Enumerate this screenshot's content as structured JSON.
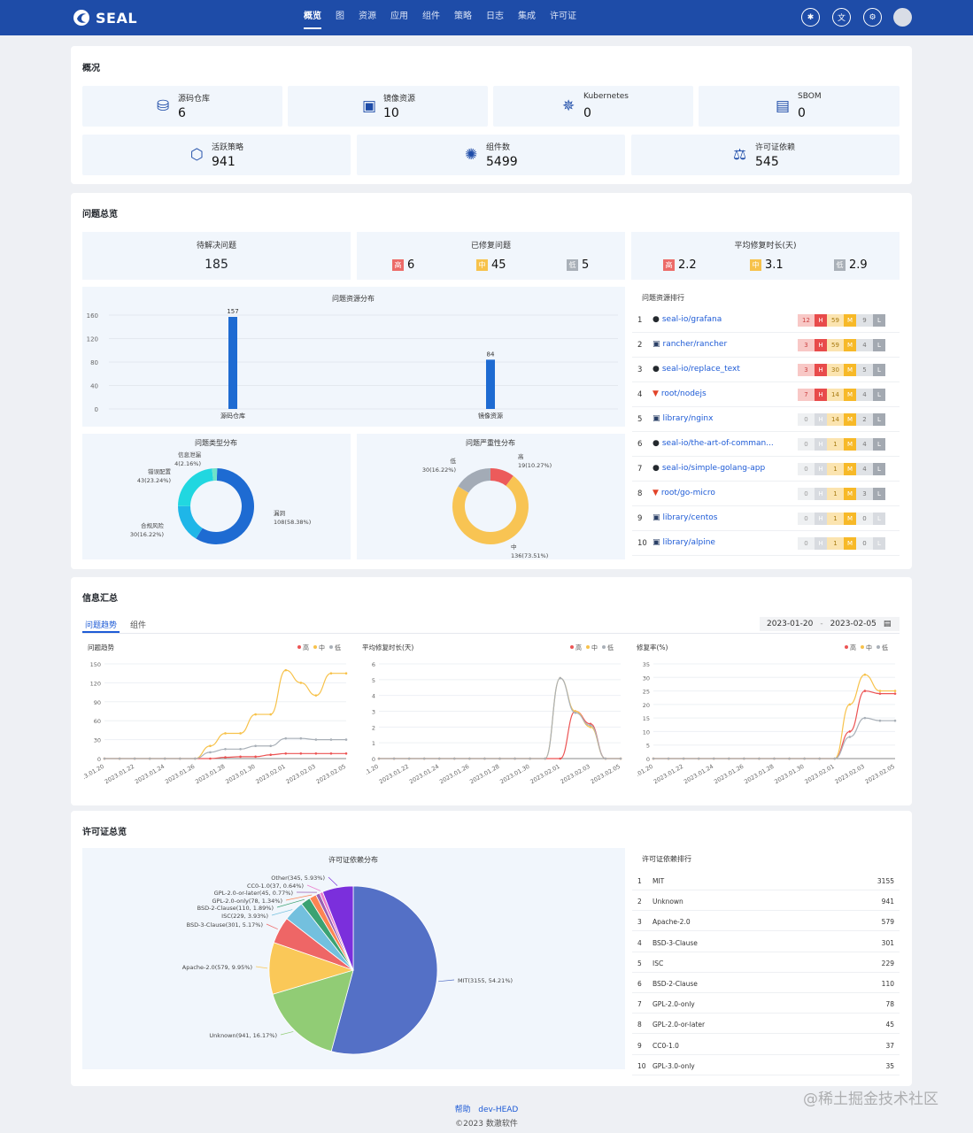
{
  "header": {
    "brand": "SEAL",
    "nav": [
      "概览",
      "图",
      "资源",
      "应用",
      "组件",
      "策略",
      "日志",
      "集成",
      "许可证"
    ],
    "active_nav": "概览",
    "icons": [
      "bug-icon",
      "translate-icon",
      "settings-icon"
    ]
  },
  "overview": {
    "title": "概况",
    "tiles": [
      {
        "label": "源码仓库",
        "value": "6",
        "icon": "database-icon"
      },
      {
        "label": "镜像资源",
        "value": "10",
        "icon": "image-icon"
      },
      {
        "label": "Kubernetes",
        "value": "0",
        "icon": "kubernetes-icon"
      },
      {
        "label": "SBOM",
        "value": "0",
        "icon": "sbom-icon"
      },
      {
        "label": "活跃策略",
        "value": "941",
        "icon": "policy-icon"
      },
      {
        "label": "组件数",
        "value": "5499",
        "icon": "component-icon"
      },
      {
        "label": "许可证依赖",
        "value": "545",
        "icon": "scale-icon"
      }
    ]
  },
  "issues": {
    "title": "问题总览",
    "pending": {
      "label": "待解决问题",
      "value": "185"
    },
    "fixed": {
      "label": "已修复问题",
      "high_badge": "高",
      "high": "6",
      "mid_badge": "中",
      "mid": "45",
      "low_badge": "低",
      "low": "5"
    },
    "avg": {
      "label": "平均修复时长(天)",
      "high_badge": "高",
      "high": "2.2",
      "mid_badge": "中",
      "mid": "3.1",
      "low_badge": "低",
      "low": "2.9"
    },
    "ranking_title": "问题资源排行",
    "ranking": [
      {
        "rank": "1",
        "repo": "seal-io/grafana",
        "kind": "github",
        "h": "12",
        "hl": "H",
        "m": "59",
        "ml": "M",
        "l": "9",
        "ll": "L"
      },
      {
        "rank": "2",
        "repo": "rancher/rancher",
        "kind": "image",
        "h": "3",
        "hl": "H",
        "m": "59",
        "ml": "M",
        "l": "4",
        "ll": "L"
      },
      {
        "rank": "3",
        "repo": "seal-io/replace_text",
        "kind": "github",
        "h": "3",
        "hl": "H",
        "m": "30",
        "ml": "M",
        "l": "5",
        "ll": "L"
      },
      {
        "rank": "4",
        "repo": "root/nodejs",
        "kind": "gitlab",
        "h": "7",
        "hl": "H",
        "m": "14",
        "ml": "M",
        "l": "4",
        "ll": "L"
      },
      {
        "rank": "5",
        "repo": "library/nginx",
        "kind": "image",
        "h": "0",
        "hl": "H",
        "m": "14",
        "ml": "M",
        "l": "2",
        "ll": "L"
      },
      {
        "rank": "6",
        "repo": "seal-io/the-art-of-comman...",
        "kind": "github",
        "h": "0",
        "hl": "H",
        "m": "1",
        "ml": "M",
        "l": "4",
        "ll": "L"
      },
      {
        "rank": "7",
        "repo": "seal-io/simple-golang-app",
        "kind": "github",
        "h": "0",
        "hl": "H",
        "m": "1",
        "ml": "M",
        "l": "4",
        "ll": "L"
      },
      {
        "rank": "8",
        "repo": "root/go-micro",
        "kind": "gitlab",
        "h": "0",
        "hl": "H",
        "m": "1",
        "ml": "M",
        "l": "3",
        "ll": "L"
      },
      {
        "rank": "9",
        "repo": "library/centos",
        "kind": "image",
        "h": "0",
        "hl": "H",
        "m": "1",
        "ml": "M",
        "l": "0",
        "ll": "L"
      },
      {
        "rank": "10",
        "repo": "library/alpine",
        "kind": "image",
        "h": "0",
        "hl": "H",
        "m": "1",
        "ml": "M",
        "l": "0",
        "ll": "L"
      }
    ]
  },
  "info": {
    "title": "信息汇总",
    "tabs": [
      "问题趋势",
      "组件"
    ],
    "date_start": "2023-01-20",
    "date_sep": "-",
    "date_end": "2023-02-05"
  },
  "license": {
    "title": "许可证总览",
    "ranking_title": "许可证依赖排行",
    "ranking": [
      {
        "rank": "1",
        "name": "MIT",
        "count": "3155"
      },
      {
        "rank": "2",
        "name": "Unknown",
        "count": "941"
      },
      {
        "rank": "3",
        "name": "Apache-2.0",
        "count": "579"
      },
      {
        "rank": "4",
        "name": "BSD-3-Clause",
        "count": "301"
      },
      {
        "rank": "5",
        "name": "ISC",
        "count": "229"
      },
      {
        "rank": "6",
        "name": "BSD-2-Clause",
        "count": "110"
      },
      {
        "rank": "7",
        "name": "GPL-2.0-only",
        "count": "78"
      },
      {
        "rank": "8",
        "name": "GPL-2.0-or-later",
        "count": "45"
      },
      {
        "rank": "9",
        "name": "CC0-1.0",
        "count": "37"
      },
      {
        "rank": "10",
        "name": "GPL-3.0-only",
        "count": "35"
      }
    ]
  },
  "footer": {
    "help": "帮助",
    "version": "dev-HEAD",
    "copyright": "©2023 数澈软件"
  },
  "watermark": "@稀土掘金技术社区",
  "colors": {
    "primary": "#1e4ca8",
    "high": "#ec5454",
    "mid": "#f7c24b",
    "low": "#a9b0b8",
    "blue": "#1e6bd2"
  },
  "chart_data": [
    {
      "type": "bar",
      "title": "问题资源分布",
      "categories": [
        "源码仓库",
        "镜像资源"
      ],
      "values": [
        157,
        84
      ],
      "ylim": [
        0,
        160
      ],
      "yticks": [
        0,
        40,
        80,
        120,
        160
      ]
    },
    {
      "type": "pie",
      "title": "问题类型分布",
      "donut": true,
      "slices": [
        {
          "label": "漏洞",
          "value": 108,
          "pct": "58.38%",
          "text": "108(58.38%)",
          "color": "#1e6bd2"
        },
        {
          "label": "合规风险",
          "value": 30,
          "pct": "16.22%",
          "text": "30(16.22%)",
          "color": "#1fb6e8"
        },
        {
          "label": "错误配置",
          "value": 43,
          "pct": "23.24%",
          "text": "43(23.24%)",
          "color": "#21d7e0"
        },
        {
          "label": "信息泄漏",
          "value": 4,
          "pct": "2.16%",
          "text": "4(2.16%)",
          "color": "#6fe3c9"
        }
      ]
    },
    {
      "type": "pie",
      "title": "问题严重性分布",
      "donut": true,
      "slices": [
        {
          "label": "高",
          "value": 19,
          "pct": "10.27%",
          "text": "19(10.27%)",
          "color": "#ec5b5b"
        },
        {
          "label": "中",
          "value": 136,
          "pct": "73.51%",
          "text": "136(73.51%)",
          "color": "#f8c453"
        },
        {
          "label": "低",
          "value": 30,
          "pct": "16.22%",
          "text": "30(16.22%)",
          "color": "#a3abb6"
        }
      ]
    },
    {
      "type": "line",
      "title": "问题趋势",
      "legend": [
        "高",
        "中",
        "低"
      ],
      "x": [
        "2023.01.20",
        "2023.01.21",
        "2023.01.22",
        "2023.01.23",
        "2023.01.24",
        "2023.01.25",
        "2023.01.26",
        "2023.01.27",
        "2023.01.28",
        "2023.01.29",
        "2023.01.30",
        "2023.01.31",
        "2023.02.01",
        "2023.02.02",
        "2023.02.03",
        "2023.02.04",
        "2023.02.05"
      ],
      "xticks": [
        ".3.01.20",
        "2023.01.22",
        "2023.01.24",
        "2023.01.26",
        "2023.01.28",
        "2023.01.30",
        "2023.02.01",
        "2023.02.03",
        "2023.02.05"
      ],
      "ylim": [
        0,
        150
      ],
      "yticks": [
        0,
        30,
        60,
        90,
        120,
        150
      ],
      "series": [
        {
          "name": "高",
          "values": [
            0,
            0,
            0,
            0,
            0,
            0,
            0,
            0,
            2,
            3,
            3,
            6,
            8,
            8,
            8,
            8,
            8
          ]
        },
        {
          "name": "中",
          "values": [
            0,
            0,
            0,
            0,
            0,
            0,
            0,
            20,
            40,
            40,
            70,
            70,
            140,
            120,
            100,
            135,
            135
          ]
        },
        {
          "name": "低",
          "values": [
            0,
            0,
            0,
            0,
            0,
            0,
            0,
            10,
            15,
            15,
            20,
            20,
            32,
            32,
            30,
            30,
            30
          ]
        }
      ]
    },
    {
      "type": "line",
      "title": "平均修复时长(天)",
      "legend": [
        "高",
        "中",
        "低"
      ],
      "x": [
        "2023.01.20",
        "2023.01.21",
        "2023.01.22",
        "2023.01.23",
        "2023.01.24",
        "2023.01.25",
        "2023.01.26",
        "2023.01.27",
        "2023.01.28",
        "2023.01.29",
        "2023.01.30",
        "2023.01.31",
        "2023.02.01",
        "2023.02.02",
        "2023.02.03",
        "2023.02.04",
        "2023.02.05"
      ],
      "xticks": [
        ".1.20",
        "2023.01.22",
        "2023.01.24",
        "2023.01.26",
        "2023.01.28",
        "2023.01.30",
        "2023.02.01",
        "2023.02.03",
        "2023.02.05"
      ],
      "ylim": [
        0,
        6
      ],
      "yticks": [
        0,
        1,
        2,
        3,
        4,
        5,
        6
      ],
      "series": [
        {
          "name": "高",
          "values": [
            0,
            0,
            0,
            0,
            0,
            0,
            0,
            0,
            0,
            0,
            0,
            0,
            0,
            3,
            2.2,
            0,
            0
          ]
        },
        {
          "name": "中",
          "values": [
            0,
            0,
            0,
            0,
            0,
            0,
            0,
            0,
            0,
            0,
            0,
            0,
            5.1,
            3,
            2,
            0,
            0
          ]
        },
        {
          "name": "低",
          "values": [
            0,
            0,
            0,
            0,
            0,
            0,
            0,
            0,
            0,
            0,
            0,
            0,
            5.1,
            2.9,
            2.1,
            0,
            0
          ]
        }
      ]
    },
    {
      "type": "line",
      "title": "修复率(%)",
      "legend": [
        "高",
        "中",
        "低"
      ],
      "x": [
        "2023.01.20",
        "2023.01.21",
        "2023.01.22",
        "2023.01.23",
        "2023.01.24",
        "2023.01.25",
        "2023.01.26",
        "2023.01.27",
        "2023.01.28",
        "2023.01.29",
        "2023.01.30",
        "2023.01.31",
        "2023.02.01",
        "2023.02.02",
        "2023.02.03",
        "2023.02.04",
        "2023.02.05"
      ],
      "xticks": [
        ".01.20",
        "2023.01.22",
        "2023.01.24",
        "2023.01.26",
        "2023.01.28",
        "2023.01.30",
        "2023.02.01",
        "2023.02.03",
        "2023.02.05"
      ],
      "ylim": [
        0,
        35
      ],
      "yticks": [
        0,
        5,
        10,
        15,
        20,
        25,
        30,
        35
      ],
      "series": [
        {
          "name": "高",
          "values": [
            0,
            0,
            0,
            0,
            0,
            0,
            0,
            0,
            0,
            0,
            0,
            0,
            0,
            10,
            25,
            24,
            24
          ]
        },
        {
          "name": "中",
          "values": [
            0,
            0,
            0,
            0,
            0,
            0,
            0,
            0,
            0,
            0,
            0,
            0,
            0,
            20,
            31,
            25,
            25
          ]
        },
        {
          "name": "低",
          "values": [
            0,
            0,
            0,
            0,
            0,
            0,
            0,
            0,
            0,
            0,
            0,
            0,
            0,
            8,
            15,
            14,
            14
          ]
        }
      ]
    },
    {
      "type": "pie",
      "title": "许可证依赖分布",
      "slices": [
        {
          "label": "MIT",
          "value": 3155,
          "pct": "54.21%",
          "text": "MIT(3155, 54.21%)",
          "color": "#5470c6"
        },
        {
          "label": "Unknown",
          "value": 941,
          "pct": "16.17%",
          "text": "Unknown(941, 16.17%)",
          "color": "#91cc75"
        },
        {
          "label": "Apache-2.0",
          "value": 579,
          "pct": "9.95%",
          "text": "Apache-2.0(579, 9.95%)",
          "color": "#fac858"
        },
        {
          "label": "BSD-3-Clause",
          "value": 301,
          "pct": "5.17%",
          "text": "BSD-3-Clause(301, 5.17%)",
          "color": "#ee6666"
        },
        {
          "label": "ISC",
          "value": 229,
          "pct": "3.93%",
          "text": "ISC(229, 3.93%)",
          "color": "#73c0de"
        },
        {
          "label": "BSD-2-Clause",
          "value": 110,
          "pct": "1.89%",
          "text": "BSD-2-Clause(110, 1.89%)",
          "color": "#3ba272"
        },
        {
          "label": "GPL-2.0-only",
          "value": 78,
          "pct": "1.34%",
          "text": "GPL-2.0-only(78, 1.34%)",
          "color": "#fc8452"
        },
        {
          "label": "GPL-2.0-or-later",
          "value": 45,
          "pct": "0.77%",
          "text": "GPL-2.0-or-later(45, 0.77%)",
          "color": "#9a60b4"
        },
        {
          "label": "CC0-1.0",
          "value": 37,
          "pct": "0.64%",
          "text": "CC0-1.0(37, 0.64%)",
          "color": "#ea7ccc"
        },
        {
          "label": "Other",
          "value": 345,
          "pct": "5.93%",
          "text": "Other(345, 5.93%)",
          "color": "#7b2fdc"
        }
      ]
    }
  ]
}
